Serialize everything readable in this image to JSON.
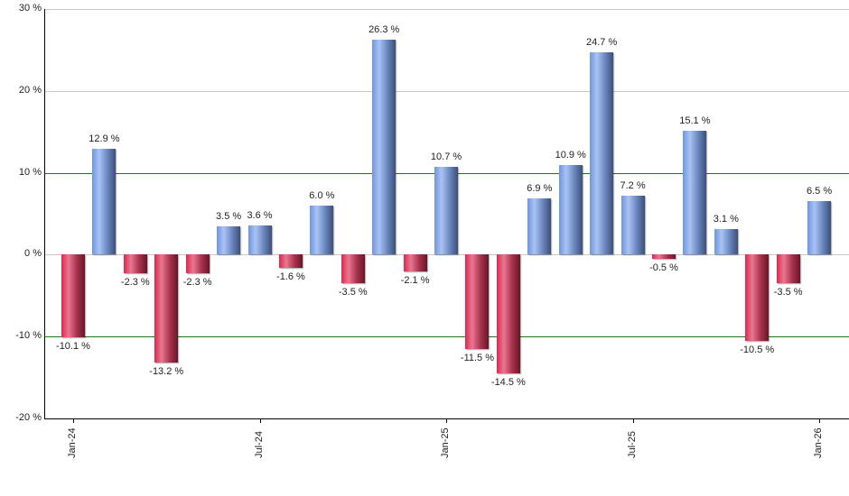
{
  "chart_data": {
    "type": "bar",
    "title": "",
    "xlabel": "",
    "ylabel": "",
    "ylim": [
      -20,
      30
    ],
    "yticks": [
      "30 %",
      "20 %",
      "10 %",
      "0 %",
      "-10 %",
      "-20 %"
    ],
    "ytick_values": [
      30,
      20,
      10,
      0,
      -10,
      -20
    ],
    "xtick_labels": [
      "Jan-24",
      "Jul-24",
      "Jan-25",
      "Jul-25",
      "Jan-26"
    ],
    "xtick_indices": [
      0,
      6,
      12,
      18,
      24
    ],
    "categories": [
      "Jan-24",
      "Feb-24",
      "Mar-24",
      "Apr-24",
      "May-24",
      "Jun-24",
      "Jul-24",
      "Aug-24",
      "Sep-24",
      "Oct-24",
      "Nov-24",
      "Dec-24",
      "Jan-25",
      "Feb-25",
      "Mar-25",
      "Apr-25",
      "May-25",
      "Jun-25",
      "Jul-25",
      "Aug-25",
      "Sep-25",
      "Oct-25",
      "Nov-25",
      "Dec-25",
      "Jan-26"
    ],
    "values": [
      -10.1,
      12.9,
      -2.3,
      -13.2,
      -2.3,
      3.5,
      3.6,
      -1.6,
      6.0,
      -3.5,
      26.3,
      -2.1,
      10.7,
      -11.5,
      -14.5,
      6.9,
      10.9,
      24.7,
      7.2,
      -0.5,
      15.1,
      3.1,
      -10.5,
      -3.5,
      6.5
    ],
    "value_labels": [
      "-10.1 %",
      "12.9 %",
      "-2.3 %",
      "-13.2 %",
      "-2.3 %",
      "3.5 %",
      "3.6 %",
      "-1.6 %",
      "6.0 %",
      "-3.5 %",
      "26.3 %",
      "-2.1 %",
      "10.7 %",
      "-11.5 %",
      "-14.5 %",
      "6.9 %",
      "10.9 %",
      "24.7 %",
      "7.2 %",
      "-0.5 %",
      "15.1 %",
      "3.1 %",
      "-10.5 %",
      "-3.5 %",
      "6.5 %"
    ],
    "colors": {
      "positive": "#7f9fe0",
      "negative": "#c8304f",
      "reference_lines": "#1a7a1a",
      "grid": "#c8c8c8"
    },
    "reference_lines": [
      10,
      -10
    ],
    "grid": true,
    "legend": null
  }
}
